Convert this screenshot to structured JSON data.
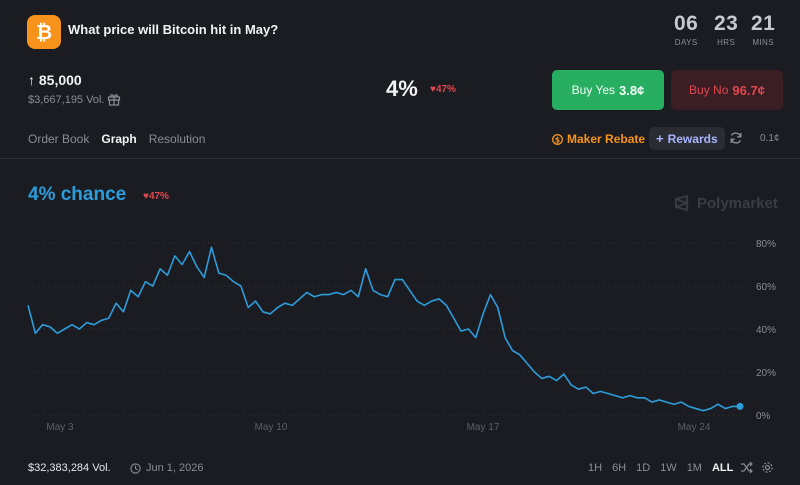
{
  "market": {
    "title": "What price will Bitcoin hit in May?",
    "logo_glyph": "₿",
    "strike": "↑ 85,000",
    "volume": "$3,667,195 Vol.",
    "price_pct": "4%",
    "price_change": "♥47%",
    "buy_yes_label": "Buy Yes",
    "buy_yes_price": "3.8¢",
    "buy_no_label": "Buy No",
    "buy_no_price": "96.7¢"
  },
  "countdown": [
    {
      "value": "06",
      "label": "DAYS"
    },
    {
      "value": "23",
      "label": "HRS"
    },
    {
      "value": "21",
      "label": "MINS"
    }
  ],
  "tabs": [
    "Order Book",
    "Graph",
    "Resolution"
  ],
  "active_tab": "Graph",
  "toolbar": {
    "maker_rebate": "Maker Rebate",
    "rewards": "Rewards",
    "spread": "0.1¢"
  },
  "graph": {
    "chance": "4% chance",
    "chance_change": "♥47%",
    "watermark": "Polymarket"
  },
  "footer": {
    "volume": "$32,383,284 Vol.",
    "end_date": "Jun 1, 2026",
    "ranges": [
      "1H",
      "6H",
      "1D",
      "1W",
      "1M",
      "ALL"
    ],
    "active_range": "ALL"
  },
  "colors": {
    "line": "#2d9cdb",
    "yes": "#27ae60",
    "no_text": "#e0484e",
    "accent_orange": "#f7931a"
  },
  "chart_data": {
    "type": "line",
    "x_ticks": [
      "May 3",
      "May 10",
      "May 17",
      "May 24"
    ],
    "y_ticks": [
      "80%",
      "60%",
      "40%",
      "20%",
      "0%"
    ],
    "ylim": [
      0,
      80
    ],
    "grid": true,
    "series": [
      {
        "values": [
          51,
          38,
          42,
          41,
          38,
          40,
          42,
          40,
          43,
          42,
          44,
          45,
          52,
          48,
          58,
          55,
          62,
          60,
          68,
          65,
          74,
          70,
          76,
          69,
          64,
          78,
          66,
          65,
          62,
          60,
          50,
          53,
          48,
          47,
          50,
          52,
          51,
          54,
          57,
          55,
          56,
          56,
          57,
          56,
          58,
          55,
          68,
          58,
          56,
          55,
          63,
          63,
          58,
          53,
          51,
          53,
          54,
          51,
          45,
          39,
          40,
          36,
          47,
          56,
          50,
          36,
          30,
          28,
          24,
          20,
          17,
          18,
          16,
          19,
          14,
          12,
          13,
          10,
          11,
          10,
          9,
          8,
          9,
          8,
          8,
          6,
          7,
          6,
          5,
          6,
          4,
          3,
          2,
          3,
          5,
          3,
          4,
          4
        ]
      }
    ]
  }
}
